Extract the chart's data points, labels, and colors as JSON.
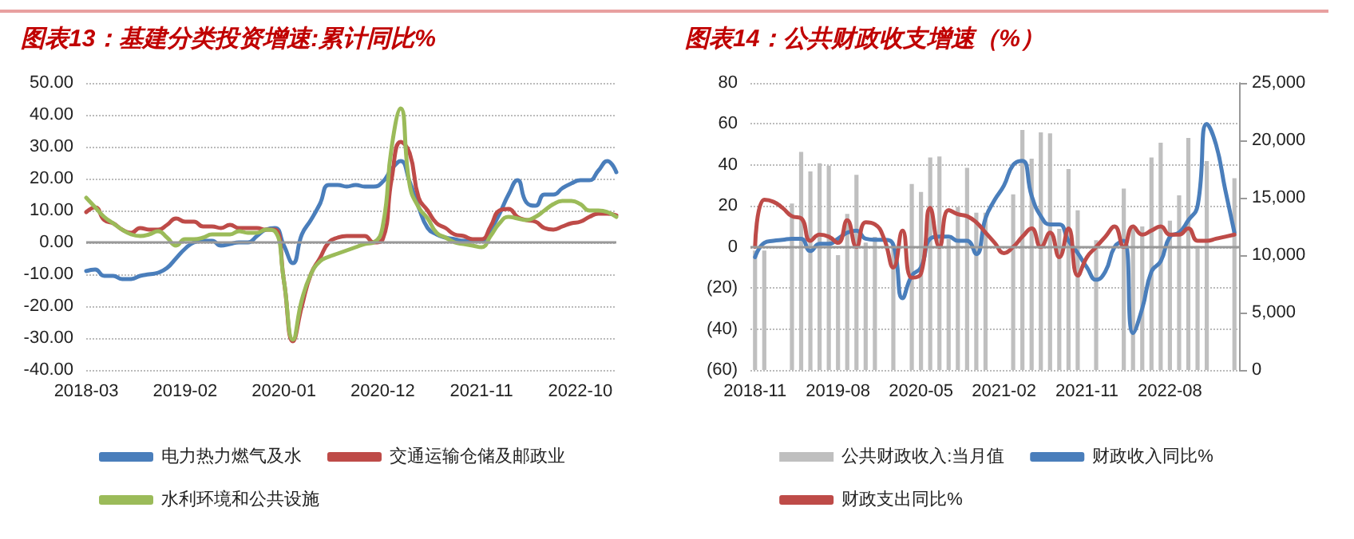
{
  "chart_data": [
    {
      "type": "line",
      "title": "图表13：基建分类投资增速:累计同比%",
      "categories": [
        "2018-03",
        null,
        null,
        null,
        null,
        null,
        null,
        null,
        null,
        null,
        null,
        "2019-02",
        null,
        null,
        null,
        null,
        null,
        null,
        null,
        null,
        null,
        null,
        "2020-01",
        null,
        null,
        null,
        null,
        null,
        null,
        null,
        null,
        null,
        null,
        "2020-12",
        null,
        null,
        null,
        null,
        null,
        null,
        null,
        null,
        null,
        null,
        "2021-11",
        null,
        null,
        null,
        null,
        null,
        null,
        null,
        null,
        null,
        null,
        "2022-10",
        null,
        null,
        null,
        null
      ],
      "series": [
        {
          "name": "电力热力燃气及水",
          "color": "#4a7ebb",
          "values": [
            -9,
            -8.5,
            -10.5,
            -10.5,
            -11.5,
            -11.5,
            -10.5,
            -10,
            -9.5,
            -8,
            -5,
            -2,
            0,
            0.5,
            0.5,
            -1,
            -0.5,
            0,
            0,
            2,
            4,
            4.5,
            -1,
            -6.5,
            2.5,
            7,
            12,
            18,
            18,
            17.5,
            18,
            17.5,
            17.5,
            19,
            23,
            25.5,
            19,
            11,
            4.5,
            2.5,
            1.5,
            1,
            0.5,
            0.5,
            0.5,
            4,
            9,
            15,
            19.5,
            12.5,
            11.5,
            15,
            15,
            17,
            18.5,
            19.5,
            19.5,
            22.5,
            25.5,
            22
          ]
        },
        {
          "name": "交通运输仓储及邮政业",
          "color": "#be4b48",
          "values": [
            9.5,
            11,
            7,
            6,
            4,
            3,
            4.5,
            4,
            4,
            5.5,
            7.5,
            6.5,
            6.5,
            5,
            5,
            4.5,
            5.5,
            4.5,
            4.5,
            4.5,
            4,
            4,
            -12,
            -31,
            -20,
            -10,
            -5,
            0,
            1.5,
            2,
            2,
            2,
            0,
            1,
            20,
            31.5,
            28,
            14,
            10,
            6,
            4.5,
            2.5,
            2,
            1,
            1,
            5,
            10,
            10.5,
            8,
            7,
            6.5,
            4.5,
            4,
            5,
            6,
            6.5,
            8,
            9,
            9,
            8.5
          ]
        },
        {
          "name": "水利环境和公共设施",
          "color": "#9bbb59",
          "values": [
            14,
            11,
            8,
            6,
            4,
            2.5,
            2,
            2.5,
            3.5,
            1.5,
            -1,
            1,
            1,
            1.5,
            2.5,
            2.5,
            2.5,
            3.5,
            3,
            3,
            4,
            3.5,
            -12,
            -30.5,
            -18,
            -10,
            -6,
            -4.5,
            -3.5,
            -2.5,
            -1.5,
            -0.5,
            0,
            5,
            30,
            42,
            18,
            11,
            7.5,
            3,
            1.5,
            0,
            -0.5,
            -1,
            -1.5,
            2,
            6,
            8,
            7.5,
            7,
            8,
            10,
            12,
            13,
            13,
            12,
            10,
            10,
            9.5,
            8
          ]
        }
      ],
      "ylim": [
        -40,
        50
      ],
      "yticks": [
        {
          "value": -40,
          "label": "-40.00"
        },
        {
          "value": -30,
          "label": "-30.00"
        },
        {
          "value": -20,
          "label": "-20.00"
        },
        {
          "value": -10,
          "label": "-10.00"
        },
        {
          "value": 0,
          "label": "0.00"
        },
        {
          "value": 10,
          "label": "10.00"
        },
        {
          "value": 20,
          "label": "20.00"
        },
        {
          "value": 30,
          "label": "30.00"
        },
        {
          "value": 40,
          "label": "40.00"
        },
        {
          "value": 50,
          "label": "50.00"
        }
      ],
      "grid": "y",
      "legend": "bottom",
      "marker": "none",
      "line_style": "solid"
    },
    {
      "type": "line",
      "title": "图表14：公共财政收支增速（%）",
      "categories": [
        "2018-11",
        null,
        null,
        null,
        null,
        null,
        null,
        null,
        null,
        "2019-08",
        null,
        null,
        null,
        null,
        null,
        null,
        null,
        null,
        "2020-05",
        null,
        null,
        null,
        null,
        null,
        null,
        null,
        null,
        "2021-02",
        null,
        null,
        null,
        null,
        null,
        null,
        null,
        null,
        "2021-11",
        null,
        null,
        null,
        null,
        null,
        null,
        null,
        null,
        "2022-08",
        null,
        null,
        null,
        null,
        null,
        null,
        null
      ],
      "series": [
        {
          "name": "公共财政收入:当月值",
          "type": "bar",
          "axis": "y2",
          "color": "#bfbfbf",
          "values": [
            10400,
            10400,
            null,
            null,
            14500,
            19000,
            17300,
            18000,
            17800,
            10000,
            13600,
            17000,
            11100,
            11600,
            null,
            10900,
            null,
            16200,
            15500,
            18500,
            18600,
            11400,
            14200,
            17600,
            13700,
            13700,
            null,
            null,
            15300,
            20900,
            18400,
            20700,
            20600,
            12300,
            17500,
            13900,
            null,
            11300,
            null,
            null,
            15800,
            12300,
            12500,
            18500,
            19800,
            13000,
            15200,
            20200,
            10800,
            18200,
            null,
            null,
            16700
          ]
        },
        {
          "name": "财政收入同比%",
          "color": "#4a7ebb",
          "values": [
            -5,
            2,
            3,
            3.5,
            4,
            4,
            -2,
            1.5,
            1.5,
            4,
            7,
            8,
            4,
            3.5,
            3.5,
            1,
            -25,
            -14,
            -10,
            4,
            5,
            5,
            3,
            3,
            -3.5,
            14,
            23,
            30,
            40,
            42,
            25,
            15,
            11,
            11,
            3,
            -3,
            -10,
            -16,
            -12,
            0,
            3,
            -42,
            -30,
            -12,
            -7,
            5,
            7,
            13,
            20,
            60,
            50,
            28,
            7
          ]
        },
        {
          "name": "财政支出同比%",
          "color": "#be4b48",
          "values": [
            0,
            23,
            22,
            19,
            15,
            14,
            3,
            6,
            5,
            2,
            13,
            0,
            12,
            11,
            4,
            -10,
            8,
            -15,
            -13,
            19,
            0,
            18,
            16,
            15,
            12,
            7,
            2,
            -3,
            0,
            5,
            9,
            0,
            7,
            -5,
            9,
            -14,
            -5,
            0,
            5,
            10,
            0,
            10,
            6,
            8,
            10,
            6,
            6,
            9,
            3,
            3,
            4,
            5,
            6
          ]
        }
      ],
      "ylim": [
        -60,
        80
      ],
      "yticks": [
        {
          "value": -60,
          "label": "(60)"
        },
        {
          "value": -40,
          "label": "(40)"
        },
        {
          "value": -20,
          "label": "(20)"
        },
        0,
        20,
        40,
        60,
        80
      ],
      "y2lim": [
        0,
        25000
      ],
      "y2ticks": [
        0,
        {
          "value": 5000,
          "label": "5,000"
        },
        {
          "value": 10000,
          "label": "10,000"
        },
        {
          "value": 15000,
          "label": "15,000"
        },
        {
          "value": 20000,
          "label": "20,000"
        },
        {
          "value": 25000,
          "label": "25,000"
        }
      ],
      "grid": "y",
      "legend": "bottom",
      "marker": "none",
      "line_style": "solid"
    }
  ]
}
